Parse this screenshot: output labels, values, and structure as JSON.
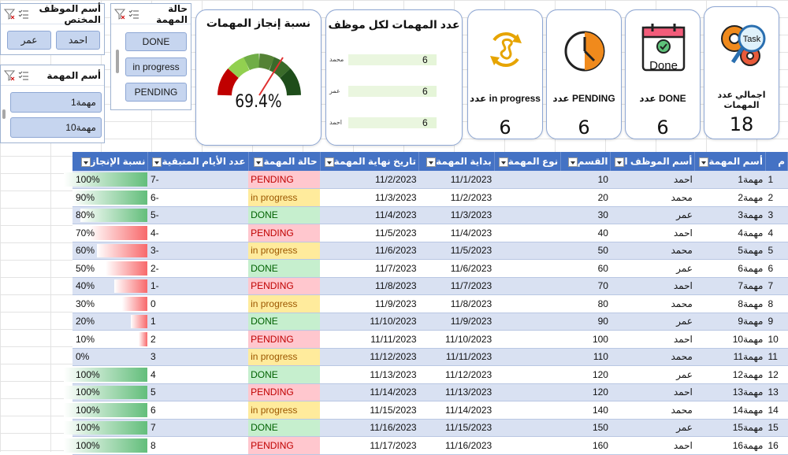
{
  "slicers": {
    "employee": {
      "title": "أسم الموظف المختص",
      "items": [
        "احمد",
        "عمر"
      ]
    },
    "status": {
      "title": "حالة المهمة",
      "items": [
        "DONE",
        "in progress",
        "PENDING"
      ]
    },
    "task": {
      "title": "أسم المهمة",
      "items": [
        "مهمة1",
        "مهمة10"
      ]
    }
  },
  "gauge": {
    "title": "نسبة إنجاز المهمات",
    "value_label": "69.4%",
    "value": 0.694
  },
  "bars": {
    "title": "عدد المهمات لكل موظف",
    "items": [
      {
        "name": "محمد",
        "value": 6
      },
      {
        "name": "عمر",
        "value": 6
      },
      {
        "name": "احمد",
        "value": 6
      }
    ]
  },
  "kpis": [
    {
      "label": "عدد in progress",
      "value": "6",
      "icon": "refresh-icon"
    },
    {
      "label": "عدد PENDING",
      "value": "6",
      "icon": "clock-icon"
    },
    {
      "label": "عدد DONE",
      "value": "6",
      "icon": "done-calendar-icon"
    },
    {
      "label": "اجمالي عدد المهمات",
      "value": "18",
      "icon": "task-gear-icon"
    }
  ],
  "table": {
    "headers": [
      "م",
      "أسم المهمة",
      "أسم الموظف ا",
      "القسم",
      "نوع المهمة",
      "بداية المهمة",
      "تاريخ نهاية المهمة",
      "حالة المهمة",
      "عدد الأيام المتبقية",
      "نسبة الإنجاز"
    ],
    "rows": [
      [
        "1",
        "مهمة1",
        "احمد",
        "10",
        "",
        "11/1/2023",
        "11/2/2023",
        "PENDING",
        "-7",
        "100%"
      ],
      [
        "2",
        "مهمة2",
        "محمد",
        "20",
        "",
        "11/2/2023",
        "11/3/2023",
        "in progress",
        "-6",
        "90%"
      ],
      [
        "3",
        "مهمة3",
        "عمر",
        "30",
        "",
        "11/3/2023",
        "11/4/2023",
        "DONE",
        "-5",
        "80%"
      ],
      [
        "4",
        "مهمة4",
        "احمد",
        "40",
        "",
        "11/4/2023",
        "11/5/2023",
        "PENDING",
        "-4",
        "70%"
      ],
      [
        "5",
        "مهمة5",
        "محمد",
        "50",
        "",
        "11/5/2023",
        "11/6/2023",
        "in progress",
        "-3",
        "60%"
      ],
      [
        "6",
        "مهمة6",
        "عمر",
        "60",
        "",
        "11/6/2023",
        "11/7/2023",
        "DONE",
        "-2",
        "50%"
      ],
      [
        "7",
        "مهمة7",
        "احمد",
        "70",
        "",
        "11/7/2023",
        "11/8/2023",
        "PENDING",
        "-1",
        "40%"
      ],
      [
        "8",
        "مهمة8",
        "محمد",
        "80",
        "",
        "11/8/2023",
        "11/9/2023",
        "in progress",
        "0",
        "30%"
      ],
      [
        "9",
        "مهمة9",
        "عمر",
        "90",
        "",
        "11/9/2023",
        "11/10/2023",
        "DONE",
        "1",
        "20%"
      ],
      [
        "10",
        "مهمة10",
        "احمد",
        "100",
        "",
        "11/10/2023",
        "11/11/2023",
        "PENDING",
        "2",
        "10%"
      ],
      [
        "11",
        "مهمة11",
        "محمد",
        "110",
        "",
        "11/11/2023",
        "11/12/2023",
        "in progress",
        "3",
        "0%"
      ],
      [
        "12",
        "مهمة12",
        "عمر",
        "120",
        "",
        "11/12/2023",
        "11/13/2023",
        "DONE",
        "4",
        "100%"
      ],
      [
        "13",
        "مهمة13",
        "احمد",
        "120",
        "",
        "11/13/2023",
        "11/14/2023",
        "PENDING",
        "5",
        "100%"
      ],
      [
        "14",
        "مهمة14",
        "محمد",
        "140",
        "",
        "11/14/2023",
        "11/15/2023",
        "in progress",
        "6",
        "100%"
      ],
      [
        "15",
        "مهمة15",
        "عمر",
        "150",
        "",
        "11/15/2023",
        "11/16/2023",
        "DONE",
        "7",
        "100%"
      ],
      [
        "16",
        "مهمة16",
        "احمد",
        "160",
        "",
        "11/16/2023",
        "11/17/2023",
        "PENDING",
        "8",
        "100%"
      ]
    ]
  },
  "colors": {
    "accent": "#4472c4",
    "pending_bg": "#ffc7ce",
    "pending_text": "#c00000",
    "progress_bg": "#ffeb9c",
    "progress_text": "#9c5700",
    "done_bg": "#c6efce",
    "done_text": "#006100"
  }
}
